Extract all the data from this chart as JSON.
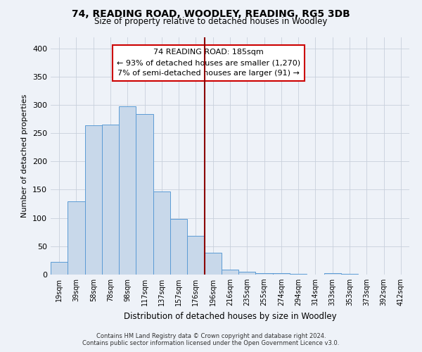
{
  "title": "74, READING ROAD, WOODLEY, READING, RG5 3DB",
  "subtitle": "Size of property relative to detached houses in Woodley",
  "xlabel": "Distribution of detached houses by size in Woodley",
  "ylabel": "Number of detached properties",
  "bin_labels": [
    "19sqm",
    "39sqm",
    "58sqm",
    "78sqm",
    "98sqm",
    "117sqm",
    "137sqm",
    "157sqm",
    "176sqm",
    "196sqm",
    "216sqm",
    "235sqm",
    "255sqm",
    "274sqm",
    "294sqm",
    "314sqm",
    "333sqm",
    "353sqm",
    "373sqm",
    "392sqm",
    "412sqm"
  ],
  "bar_values": [
    22,
    130,
    264,
    265,
    298,
    284,
    147,
    98,
    69,
    38,
    9,
    5,
    2,
    3,
    1,
    0,
    2,
    1,
    0,
    0,
    0
  ],
  "bar_color": "#c8d8ea",
  "bar_edge_color": "#5b9bd5",
  "marker_color": "#8b0000",
  "annotation_title": "74 READING ROAD: 185sqm",
  "annotation_line1": "← 93% of detached houses are smaller (1,270)",
  "annotation_line2": "7% of semi-detached houses are larger (91) →",
  "annotation_box_color": "#ffffff",
  "annotation_box_edge_color": "#cc0000",
  "ylim": [
    0,
    420
  ],
  "yticks": [
    0,
    50,
    100,
    150,
    200,
    250,
    300,
    350,
    400
  ],
  "footer_line1": "Contains HM Land Registry data © Crown copyright and database right 2024.",
  "footer_line2": "Contains public sector information licensed under the Open Government Licence v3.0.",
  "bg_color": "#eef2f8",
  "plot_bg_color": "#eef2f8",
  "grid_color": "#c8d0dc"
}
